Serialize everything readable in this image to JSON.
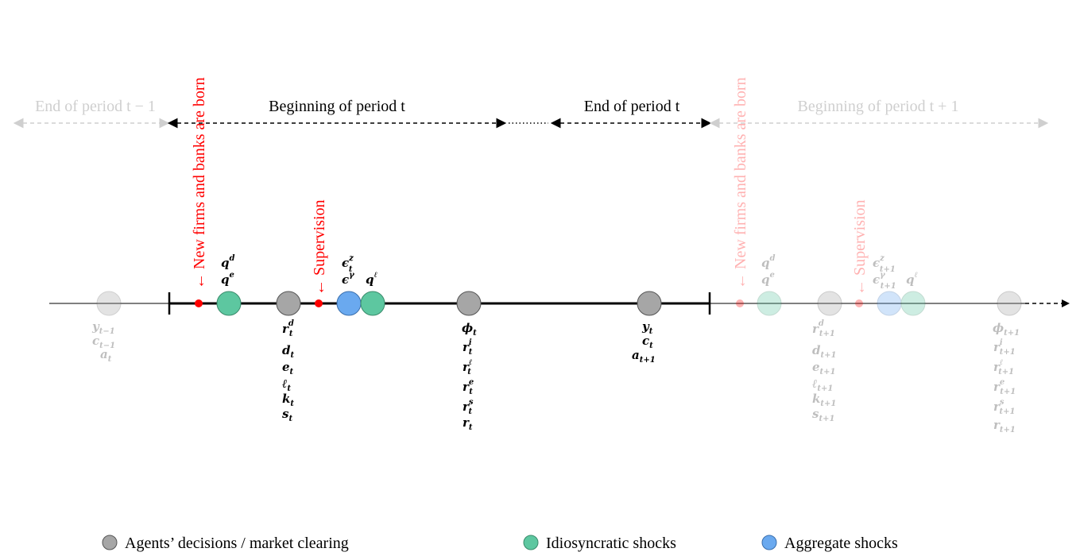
{
  "header_labels": {
    "end_prev": "End of period t − 1",
    "begin_t": "Beginning of period t",
    "end_t": "End of period t",
    "begin_next": "Beginning of period t + 1"
  },
  "events": {
    "entry_label": "← New firms and banks are born",
    "supervision_label": "← Supervision"
  },
  "legend": {
    "decisions": "Agents’ decisions / market clearing",
    "idiosyncratic": "Idiosyncratic shocks",
    "aggregate": "Aggregate shocks"
  },
  "colors": {
    "decision": "#a6a6a6",
    "idiosyncratic": "#5dc7a0",
    "aggregate": "#6aa9ef",
    "event": "#ff0000",
    "faded": "#cccccc"
  },
  "icons": {
    "arrow": "left-arrow"
  }
}
